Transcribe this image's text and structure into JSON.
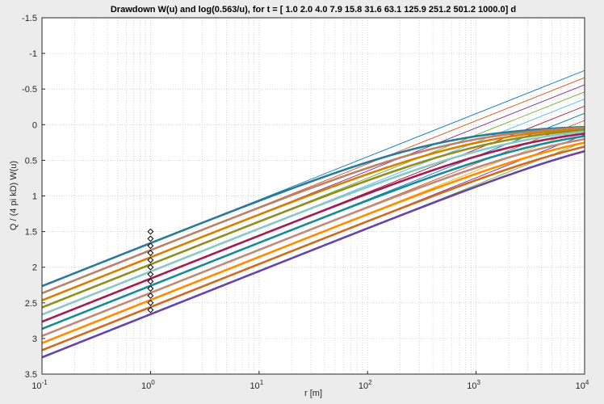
{
  "chart_data": {
    "type": "line",
    "title": "Drawdown W(u) and log(0.563/u), for t = [ 1.0 2.0 4.0 7.9 15.8 31.6 63.1 125.9 251.2 501.2 1000.0] d",
    "xlabel": "r [m]",
    "ylabel": "Q / (4 pi kD) W(u)",
    "x_scale": "log",
    "xlim": [
      0.1,
      10000
    ],
    "ylim": [
      3.5,
      -1.5
    ],
    "y_reversed": true,
    "grid": true,
    "x_ticks": [
      {
        "base": "10",
        "exp": "-1"
      },
      {
        "base": "10",
        "exp": "0"
      },
      {
        "base": "10",
        "exp": "1"
      },
      {
        "base": "10",
        "exp": "2"
      },
      {
        "base": "10",
        "exp": "3"
      },
      {
        "base": "10",
        "exp": "4"
      }
    ],
    "y_ticks": [
      "-1.5",
      "-1",
      "-0.5",
      "0",
      "0.5",
      "1",
      "1.5",
      "2",
      "2.5",
      "3",
      "3.5"
    ],
    "t_days": [
      1.0,
      2.0,
      4.0,
      7.9,
      15.8,
      31.6,
      63.1,
      125.9,
      251.2,
      501.2,
      1000.0
    ],
    "series_colors": [
      "#0072bd",
      "#d95319",
      "#7e2f8e",
      "#77ac30",
      "#4dbeee",
      "#a2142f",
      "#0072bd",
      "#d95319",
      "#edb120",
      "#7e2f8e",
      "#77ac30"
    ],
    "thick_colors": [
      "#2a7a9a",
      "#b8826a",
      "#d97f00",
      "#8f8f20",
      "#8cc7c7",
      "#a21c55",
      "#1a8a9a",
      "#c08a78",
      "#ff8c00",
      "#d06a20",
      "#6644aa"
    ],
    "line_intercepts": [
      2.46,
      2.56,
      2.66,
      2.76,
      2.86,
      2.96,
      3.06,
      3.16,
      3.26,
      3.36,
      3.46
    ],
    "line_slope": 0.605,
    "line_xrange": [
      0.1,
      10000
    ],
    "marker_x": 1.0,
    "marker_values": [
      1.5,
      1.6,
      1.7,
      1.8,
      1.9,
      2.0,
      2.1,
      2.2,
      2.3,
      2.4,
      2.5,
      2.6
    ],
    "curve_max_y": 3.5
  }
}
